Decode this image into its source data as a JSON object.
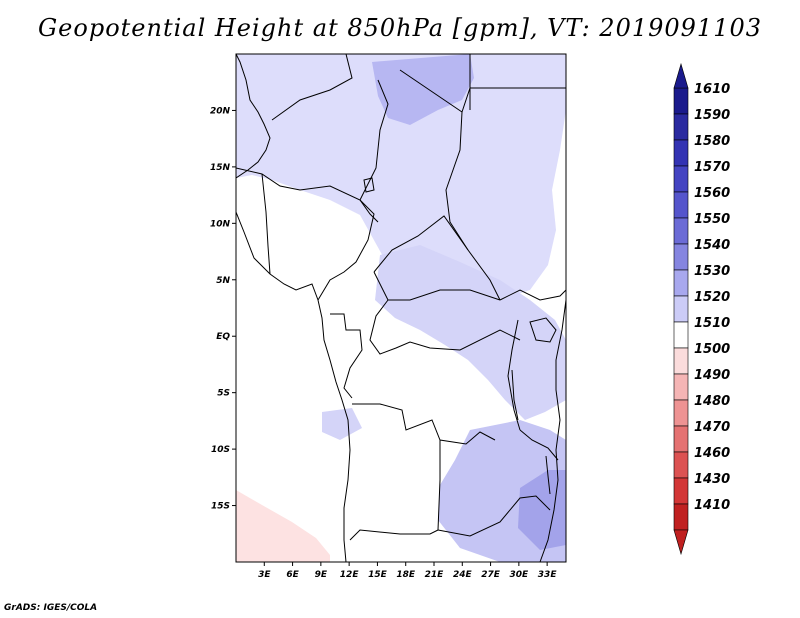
{
  "title": "Geopotential Height at 850hPa [gpm], VT: 2019091103",
  "credit": "GrADS: IGES/COLA",
  "map": {
    "lon_range": [
      0,
      35
    ],
    "lat_range": [
      -20,
      25
    ],
    "lon_ticks": [
      "3E",
      "6E",
      "9E",
      "12E",
      "15E",
      "18E",
      "21E",
      "24E",
      "27E",
      "30E",
      "33E"
    ],
    "lat_ticks": [
      "20N",
      "15N",
      "10N",
      "5N",
      "EQ",
      "5S",
      "10S",
      "15S"
    ],
    "background_color": "#ffffff"
  },
  "colorbar": {
    "levels": [
      "1610",
      "1590",
      "1580",
      "1570",
      "1560",
      "1550",
      "1540",
      "1530",
      "1520",
      "1510",
      "1500",
      "1490",
      "1480",
      "1470",
      "1460",
      "1430",
      "1410"
    ],
    "colors": [
      "#1a1a8c",
      "#2a2aa0",
      "#3333b3",
      "#4444c2",
      "#5555cc",
      "#6b6bd6",
      "#8585e0",
      "#a8a8ee",
      "#ccccf7",
      "#ffffff",
      "#fbdcdc",
      "#f5b5b5",
      "#ee9393",
      "#e57272",
      "#dc5252",
      "#d33636",
      "#c02020"
    ]
  },
  "shading": {
    "north_sahara": "#ddddfb",
    "sahara_core": "#b7b7f2",
    "east_africa": "#d4d4f8",
    "southeast": "#c5c5f4",
    "mozambique": "#a3a3ea",
    "south_atlantic": "#fde2e2"
  }
}
